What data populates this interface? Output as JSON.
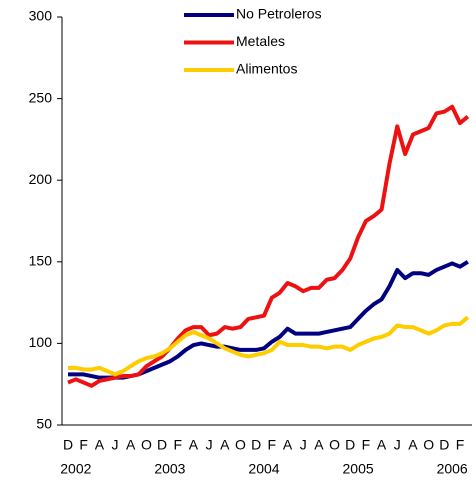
{
  "chart_data": {
    "type": "line",
    "categories": [
      "D",
      null,
      "F",
      null,
      "A",
      null,
      "J",
      null,
      "A",
      null,
      "O",
      null,
      "D",
      null,
      "F",
      null,
      "A",
      null,
      "J",
      null,
      "A",
      null,
      "O",
      null,
      "D",
      null,
      "F",
      null,
      "A",
      null,
      "J",
      null,
      "A",
      null,
      "O",
      null,
      "D",
      null,
      "F",
      null,
      "A",
      null,
      "J",
      null,
      "A",
      null,
      "O",
      null,
      "D",
      null,
      "F",
      null
    ],
    "year_labels": [
      "2002",
      "2003",
      "2004",
      "2005",
      "2006"
    ],
    "series": [
      {
        "name": "No Petroleros",
        "color": "#000080",
        "values": [
          81,
          81,
          81,
          80,
          79,
          79,
          79,
          79,
          80,
          81,
          83,
          85,
          87,
          89,
          92,
          96,
          99,
          100,
          99,
          98,
          98,
          97,
          96,
          96,
          96,
          97,
          101,
          104,
          109,
          106,
          106,
          106,
          106,
          107,
          108,
          109,
          110,
          115,
          120,
          124,
          127,
          135,
          145,
          140,
          143,
          143,
          142,
          145,
          147,
          149,
          147,
          150
        ]
      },
      {
        "name": "Metales",
        "color": "#ee1111",
        "values": [
          76,
          78,
          76,
          74,
          77,
          78,
          79,
          80,
          80,
          81,
          86,
          89,
          92,
          97,
          103,
          108,
          110,
          110,
          105,
          106,
          110,
          109,
          110,
          115,
          116,
          117,
          128,
          131,
          137,
          135,
          132,
          134,
          134,
          139,
          140,
          145,
          152,
          165,
          175,
          178,
          182,
          210,
          233,
          216,
          228,
          230,
          232,
          241,
          242,
          245,
          235,
          239
        ]
      },
      {
        "name": "Alimentos",
        "color": "#ffcc00",
        "values": [
          85,
          85,
          84,
          84,
          85,
          83,
          81,
          83,
          86,
          89,
          91,
          92,
          94,
          97,
          101,
          105,
          107,
          105,
          103,
          100,
          97,
          95,
          93,
          92,
          93,
          94,
          96,
          101,
          99,
          99,
          99,
          98,
          98,
          97,
          98,
          98,
          96,
          99,
          101,
          103,
          104,
          106,
          111,
          110,
          110,
          108,
          106,
          108,
          111,
          112,
          112,
          116
        ]
      }
    ],
    "ylim": [
      50,
      300
    ],
    "yticks": [
      50,
      100,
      150,
      200,
      250,
      300
    ],
    "grid": false,
    "legend": "top"
  }
}
